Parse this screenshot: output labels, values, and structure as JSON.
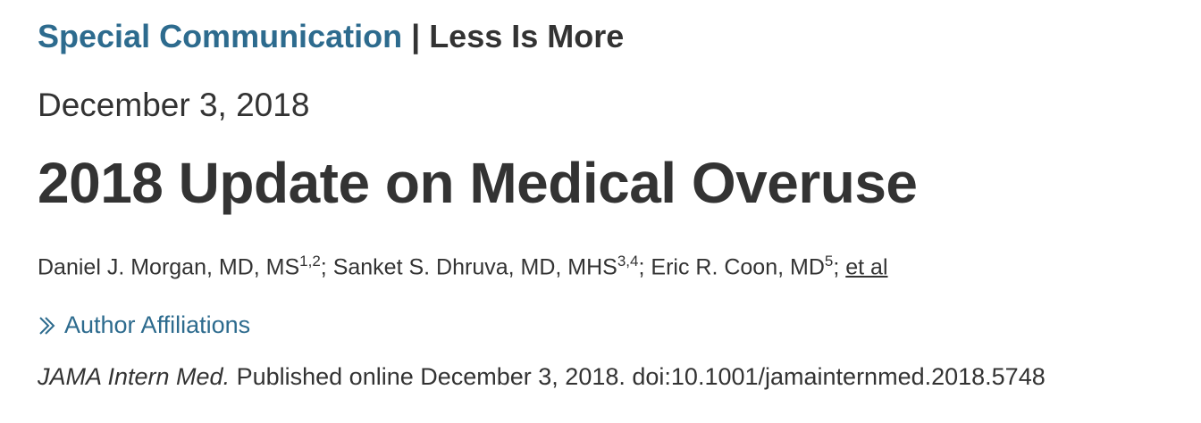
{
  "header": {
    "article_type": "Special Communication",
    "separator": "|",
    "section": "Less Is More"
  },
  "date": "December 3, 2018",
  "title": "2018 Update on Medical Overuse",
  "authors": {
    "list": [
      {
        "name": "Daniel J. Morgan, MD, MS",
        "affiliations": "1,2"
      },
      {
        "name": "Sanket S. Dhruva, MD, MHS",
        "affiliations": "3,4"
      },
      {
        "name": "Eric R. Coon, MD",
        "affiliations": "5"
      }
    ],
    "separator": ";",
    "more": "et al"
  },
  "affiliations_link": "Author Affiliations",
  "citation": {
    "journal": "JAMA Intern Med.",
    "details": "Published online December 3, 2018. doi:10.1001/jamainternmed.2018.5748"
  }
}
